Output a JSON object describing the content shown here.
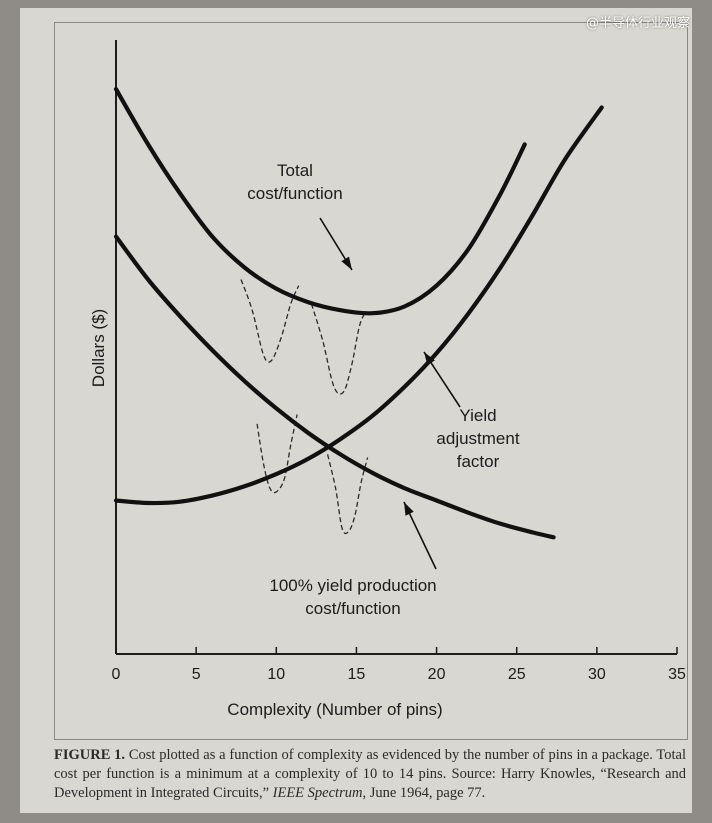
{
  "watermark": "@半导体行业观察",
  "caption": {
    "figure_label": "FIGURE 1.",
    "line1": " Cost plotted as a function of complexity as evidenced by the number of",
    "line2": "pins in a package. Total cost per function is a minimum at a complexity of 10 to 14",
    "line3": "pins. Source: Harry Knowles, “Research and Development in Integrated Circuits,”",
    "journal": "IEEE Spectrum",
    "line4_rest": ", June 1964, page 77."
  },
  "chart_data": {
    "type": "line",
    "xlabel": "Complexity (Number of pins)",
    "ylabel": "Dollars ($)",
    "xlim": [
      0,
      35
    ],
    "x_ticks": [
      "0",
      "5",
      "10",
      "15",
      "20",
      "25",
      "30",
      "35"
    ],
    "grid": false,
    "y_tick_labels": false,
    "series": [
      {
        "name": "Total cost/function",
        "label_lines": [
          "Total",
          "cost/function"
        ],
        "x": [
          0,
          2,
          4,
          6,
          8,
          10,
          12,
          14,
          16,
          18,
          20,
          22,
          24,
          25.5
        ],
        "y": [
          92,
          83,
          75,
          68,
          63,
          59.5,
          57.3,
          56,
          55.5,
          56.6,
          60,
          66,
          75,
          83
        ]
      },
      {
        "name": "Yield adjustment factor",
        "label_lines": [
          "Yield",
          "adjustment",
          "factor"
        ],
        "x": [
          0,
          2,
          4,
          6,
          8,
          10,
          12,
          14,
          16,
          18,
          20,
          22,
          24,
          26,
          28,
          30.3
        ],
        "y": [
          25,
          24.6,
          24.8,
          25.8,
          27.3,
          29.3,
          31.8,
          35,
          38.8,
          43.5,
          49,
          55.5,
          63,
          71.5,
          80.5,
          89
        ]
      },
      {
        "name": "100% yield production cost/function",
        "label_lines": [
          "100% yield production",
          "cost/function"
        ],
        "x": [
          0,
          2,
          4,
          6,
          8,
          10,
          12,
          14,
          16,
          18,
          20,
          22,
          24,
          26,
          27.3
        ],
        "y": [
          68,
          61,
          55,
          49.5,
          44.5,
          40,
          36,
          32.5,
          29.5,
          27,
          25,
          23,
          21.2,
          19.8,
          19
        ]
      }
    ],
    "dashed_dips": [
      {
        "on": "Total cost/function",
        "x": [
          7.8,
          8.5,
          9.2,
          9.7,
          10.3,
          10.9,
          11.4
        ],
        "y": [
          61,
          56,
          48.7,
          47.8,
          51.5,
          57,
          60
        ]
      },
      {
        "on": "Total cost/function",
        "x": [
          12.2,
          12.9,
          13.6,
          14.2,
          14.7,
          15.2,
          15.6
        ],
        "y": [
          57,
          51,
          43.5,
          42.7,
          47,
          53.5,
          55.8
        ]
      },
      {
        "on": "Yield adjustment factor",
        "x": [
          8.8,
          9.2,
          9.6,
          10,
          10.5,
          10.9,
          11.3
        ],
        "y": [
          37.5,
          31,
          27,
          26.4,
          28.5,
          34,
          39
        ]
      },
      {
        "on": "100% yield production cost/function",
        "x": [
          13.2,
          13.7,
          14.1,
          14.5,
          14.9,
          15.3,
          15.7
        ],
        "y": [
          32.5,
          27,
          20.5,
          19.9,
          22.5,
          28,
          32
        ]
      }
    ]
  }
}
